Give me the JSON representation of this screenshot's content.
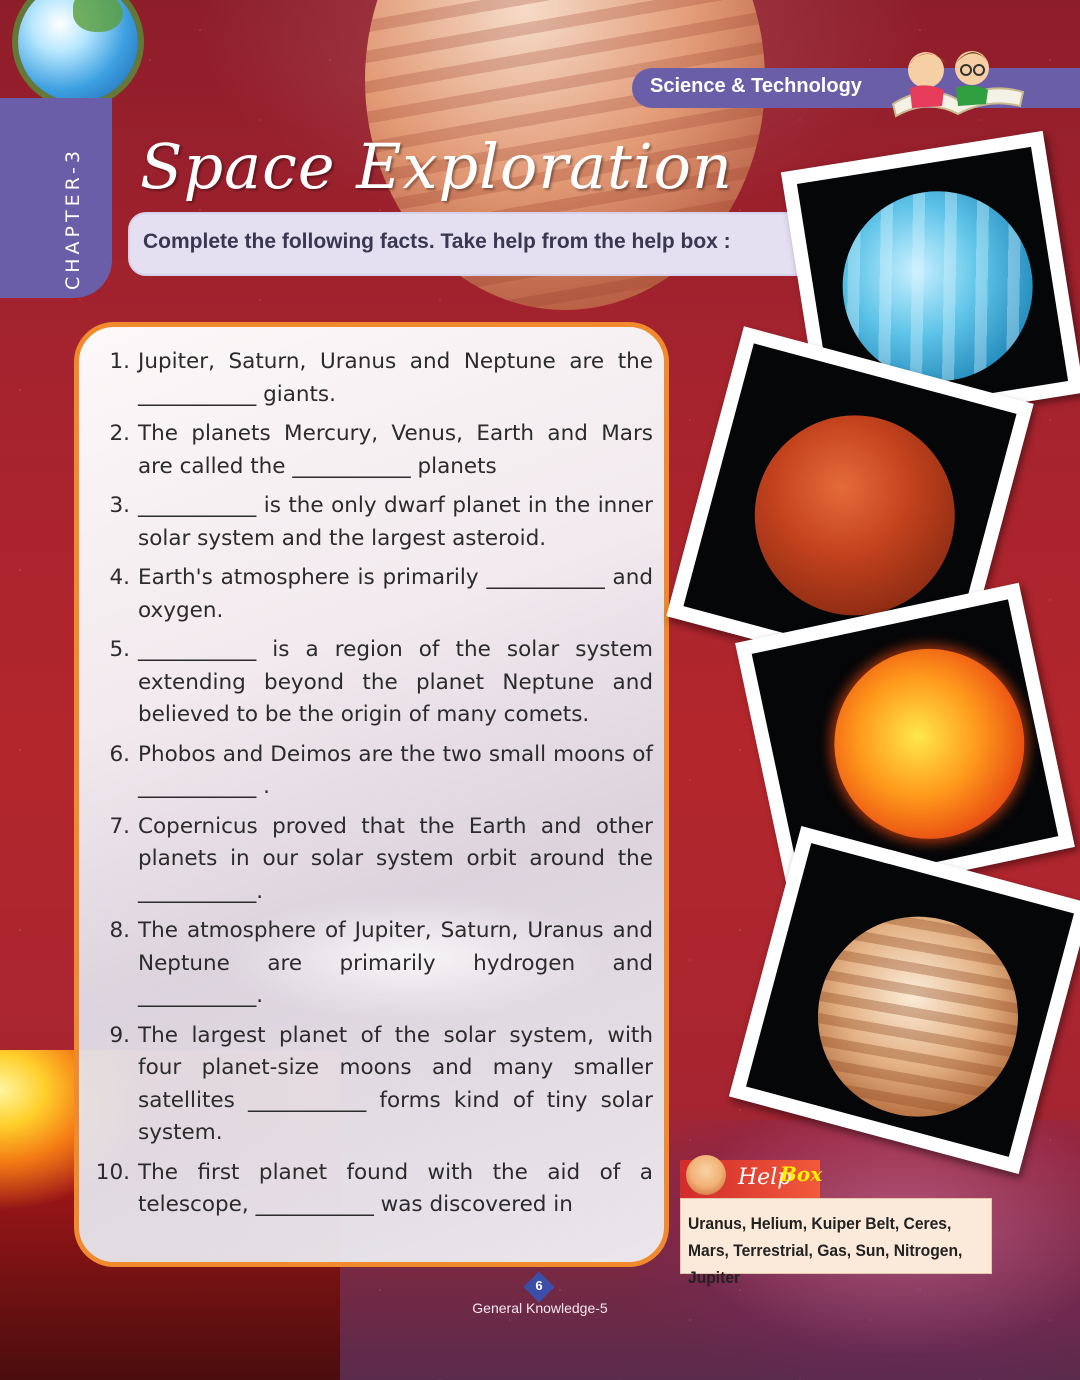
{
  "header": {
    "subject": "Science & Technology",
    "chapter": "CHAPTER-3",
    "title": "Space Exploration",
    "instruction": "Complete the following facts. Take help from the help box :"
  },
  "questions": [
    {
      "num": "1.",
      "text": "Jupiter, Saturn, Uranus and Neptune are the ___________ giants."
    },
    {
      "num": "2.",
      "text": "The planets Mercury, Venus, Earth and Mars are called the ___________ planets"
    },
    {
      "num": "3.",
      "text": "___________ is the only dwarf planet in the inner solar system and the largest asteroid."
    },
    {
      "num": "4.",
      "text": "Earth's atmosphere is primarily ___________ and oxygen."
    },
    {
      "num": "5.",
      "text": "___________ is a region of the solar system extending beyond the planet Neptune and believed to be the origin of many comets."
    },
    {
      "num": "6.",
      "text": "Phobos and Deimos are the two small moons of ___________ ."
    },
    {
      "num": "7.",
      "text": "Copernicus proved that the Earth and other planets in our solar system orbit around the ___________."
    },
    {
      "num": "8.",
      "text": "The atmosphere of Jupiter, Saturn, Uranus and Neptune are primarily hydrogen and ___________."
    },
    {
      "num": "9.",
      "text": "The largest planet of the solar system, with four planet-size moons and many smaller satellites ___________ forms kind of tiny solar system."
    },
    {
      "num": "10.",
      "text": "The first planet found with the aid of a telescope, ___________ was discovered in"
    }
  ],
  "help_box": {
    "label_help": "Help",
    "label_box": "Box",
    "words": "Uranus, Helium, Kuiper Belt, Ceres, Mars, Terrestrial, Gas, Sun, Nitrogen, Jupiter"
  },
  "footer": {
    "page_number": "6",
    "book": "General Knowledge-5"
  },
  "colors": {
    "accent_purple": "#6a5ea8",
    "box_border_orange": "#f08a2c",
    "background_red": "#b3262c"
  }
}
